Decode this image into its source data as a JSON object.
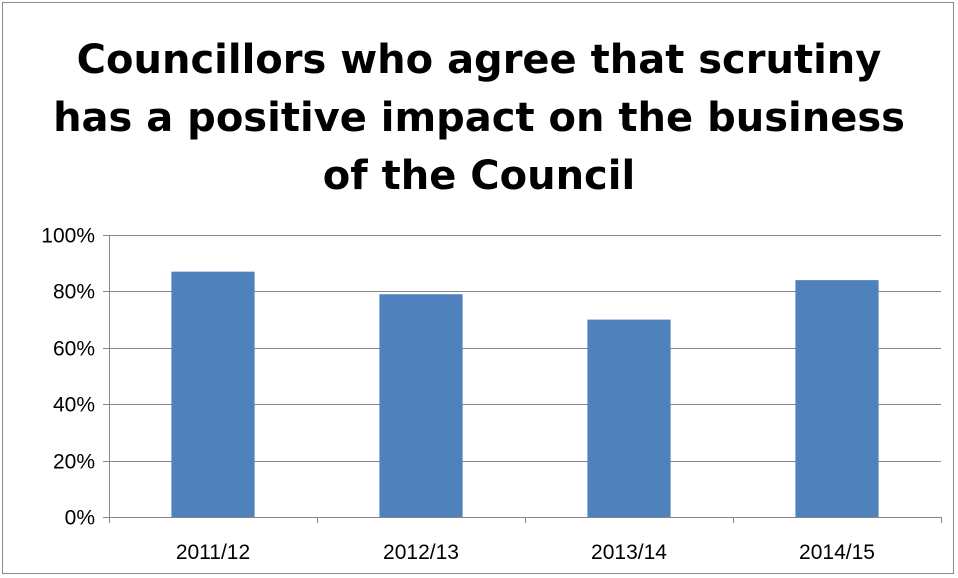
{
  "chart_data": {
    "type": "bar",
    "title": "Councillors who agree that scrutiny\nhas a positive impact on the business\nof the Council",
    "categories": [
      "2011/12",
      "2012/13",
      "2013/14",
      "2014/15"
    ],
    "values": [
      87,
      79,
      70,
      84
    ],
    "ylim": [
      0,
      100
    ],
    "ytick_values": [
      0,
      20,
      40,
      60,
      80,
      100
    ],
    "ytick_labels": [
      "0%",
      "20%",
      "40%",
      "60%",
      "80%",
      "100%"
    ],
    "grid": true,
    "legend": "none",
    "colors": {
      "bar": "#4f81bd",
      "grid": "#868686",
      "axis": "#868686"
    }
  }
}
